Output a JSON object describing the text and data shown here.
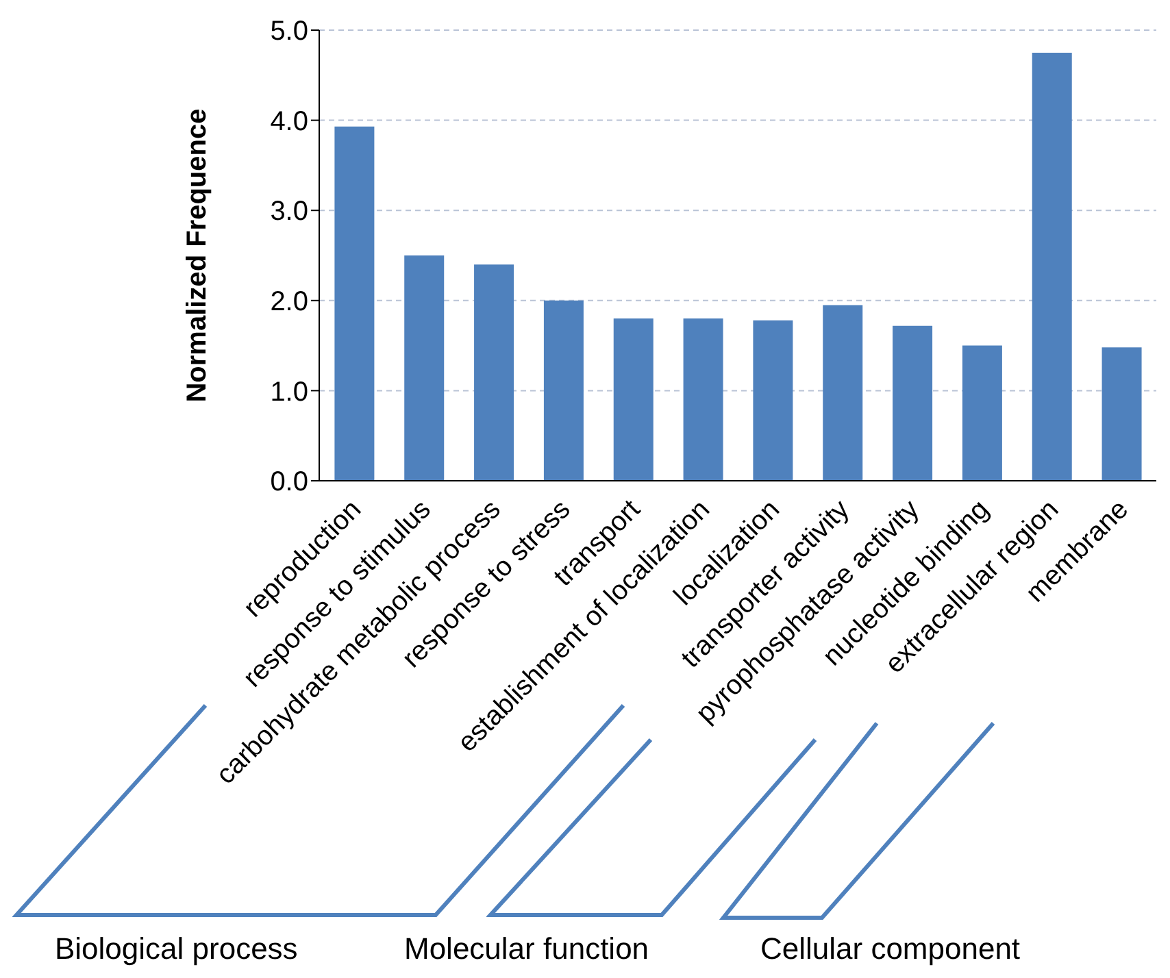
{
  "chart_data": {
    "type": "bar",
    "ylabel": "Normalized  Frequence",
    "categories": [
      "reproduction",
      "response to stimulus",
      "carbohydrate metabolic process",
      "response to stress",
      "transport",
      "establishment of localization",
      "localization",
      "transporter activity",
      "pyrophosphatase activity",
      "nucleotide binding",
      "extracellular region",
      "membrane"
    ],
    "values": [
      3.93,
      2.5,
      2.4,
      2.0,
      1.8,
      1.8,
      1.78,
      1.95,
      1.72,
      1.5,
      4.75,
      1.48
    ],
    "color": "#4f81bd",
    "ylim": [
      0,
      5
    ],
    "yticks": [
      {
        "value": 0,
        "label": "0.0"
      },
      {
        "value": 1,
        "label": "1.0"
      },
      {
        "value": 2,
        "label": "2.0"
      },
      {
        "value": 3,
        "label": "3.0"
      },
      {
        "value": 4,
        "label": "4.0"
      },
      {
        "value": 5,
        "label": "5.0"
      }
    ],
    "grid": "y",
    "annotations": [
      "Biological process",
      "Molecular function",
      "Cellular component"
    ]
  }
}
